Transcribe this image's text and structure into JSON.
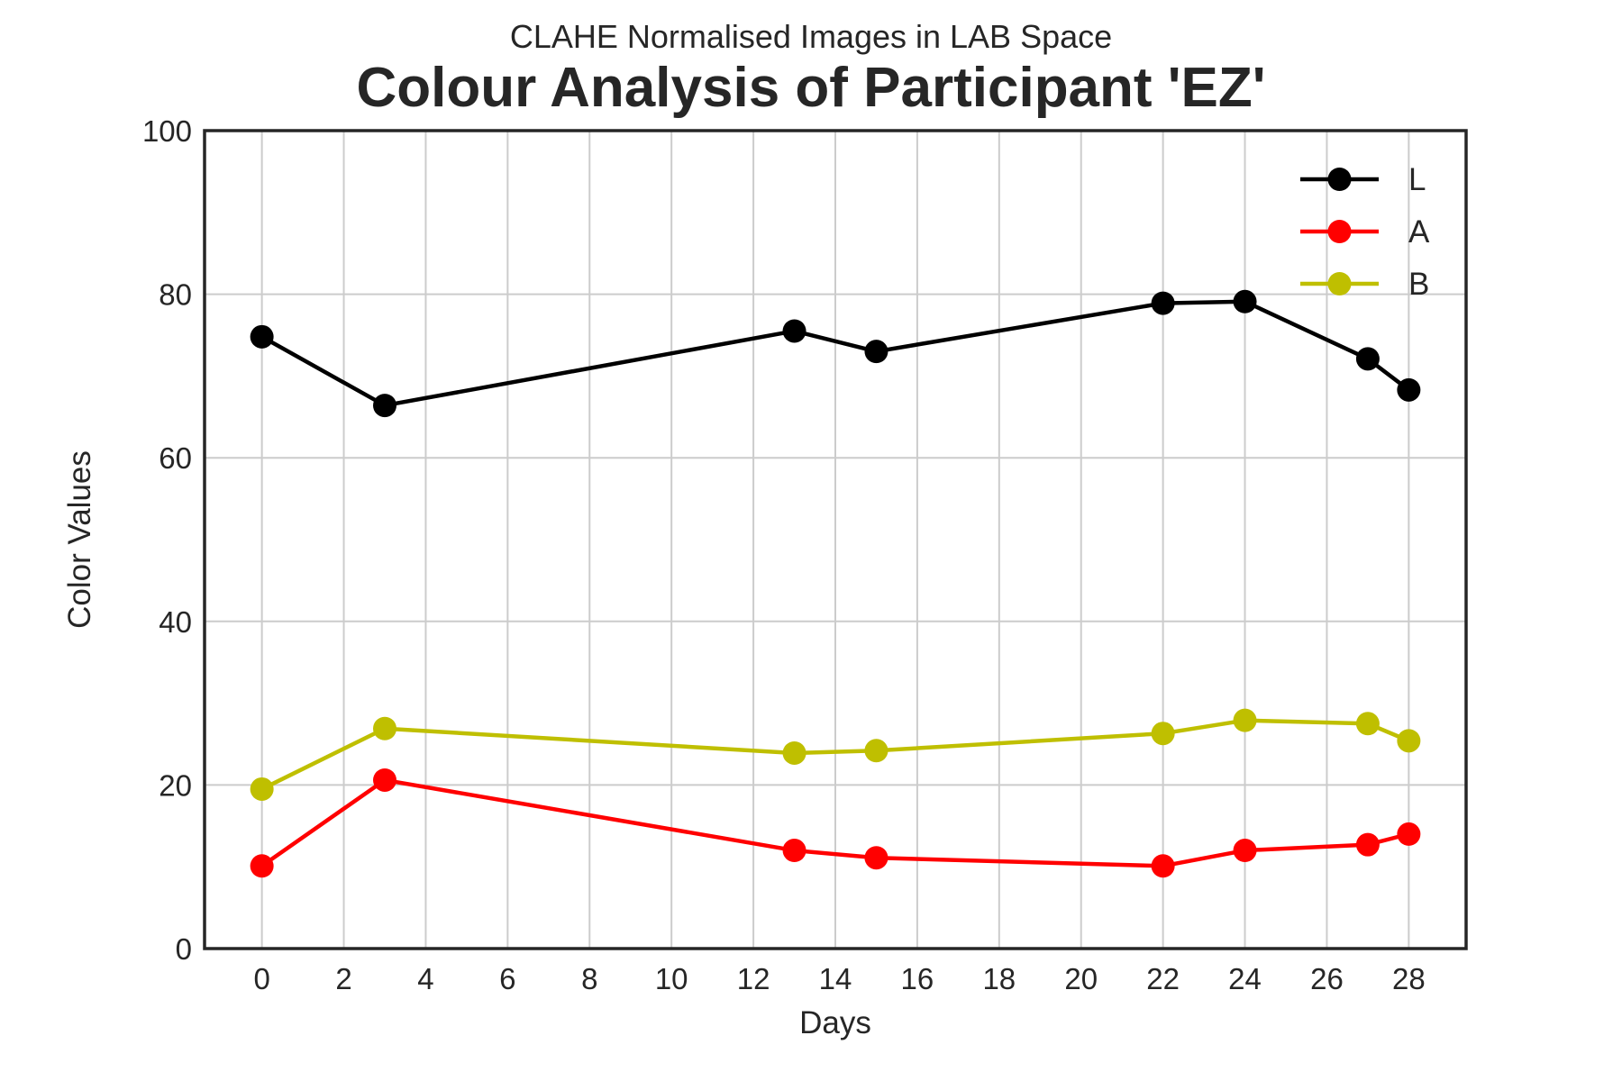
{
  "chart_data": {
    "type": "line",
    "title": "Colour Analysis of Participant 'EZ'",
    "subtitle": "CLAHE Normalised Images in LAB Space",
    "xlabel": "Days",
    "ylabel": "Color Values",
    "xlim": [
      -1.4,
      29.4
    ],
    "ylim": [
      0,
      100
    ],
    "xticks": [
      0,
      2,
      4,
      6,
      8,
      10,
      12,
      14,
      16,
      18,
      20,
      22,
      24,
      26,
      28
    ],
    "yticks": [
      0,
      20,
      40,
      60,
      80,
      100
    ],
    "grid": true,
    "legend_position": "top-right",
    "x": [
      0,
      3,
      13,
      15,
      22,
      24,
      27,
      28
    ],
    "series": [
      {
        "name": "L",
        "color": "#000000",
        "values": [
          74.8,
          66.4,
          75.5,
          73.0,
          78.9,
          79.1,
          72.1,
          68.3
        ]
      },
      {
        "name": "A",
        "color": "#ff0000",
        "values": [
          10.1,
          20.6,
          12.0,
          11.1,
          10.1,
          12.0,
          12.7,
          14.0
        ]
      },
      {
        "name": "B",
        "color": "#bfbf00",
        "values": [
          19.5,
          26.9,
          23.9,
          24.2,
          26.3,
          27.9,
          27.5,
          25.4
        ]
      }
    ]
  }
}
